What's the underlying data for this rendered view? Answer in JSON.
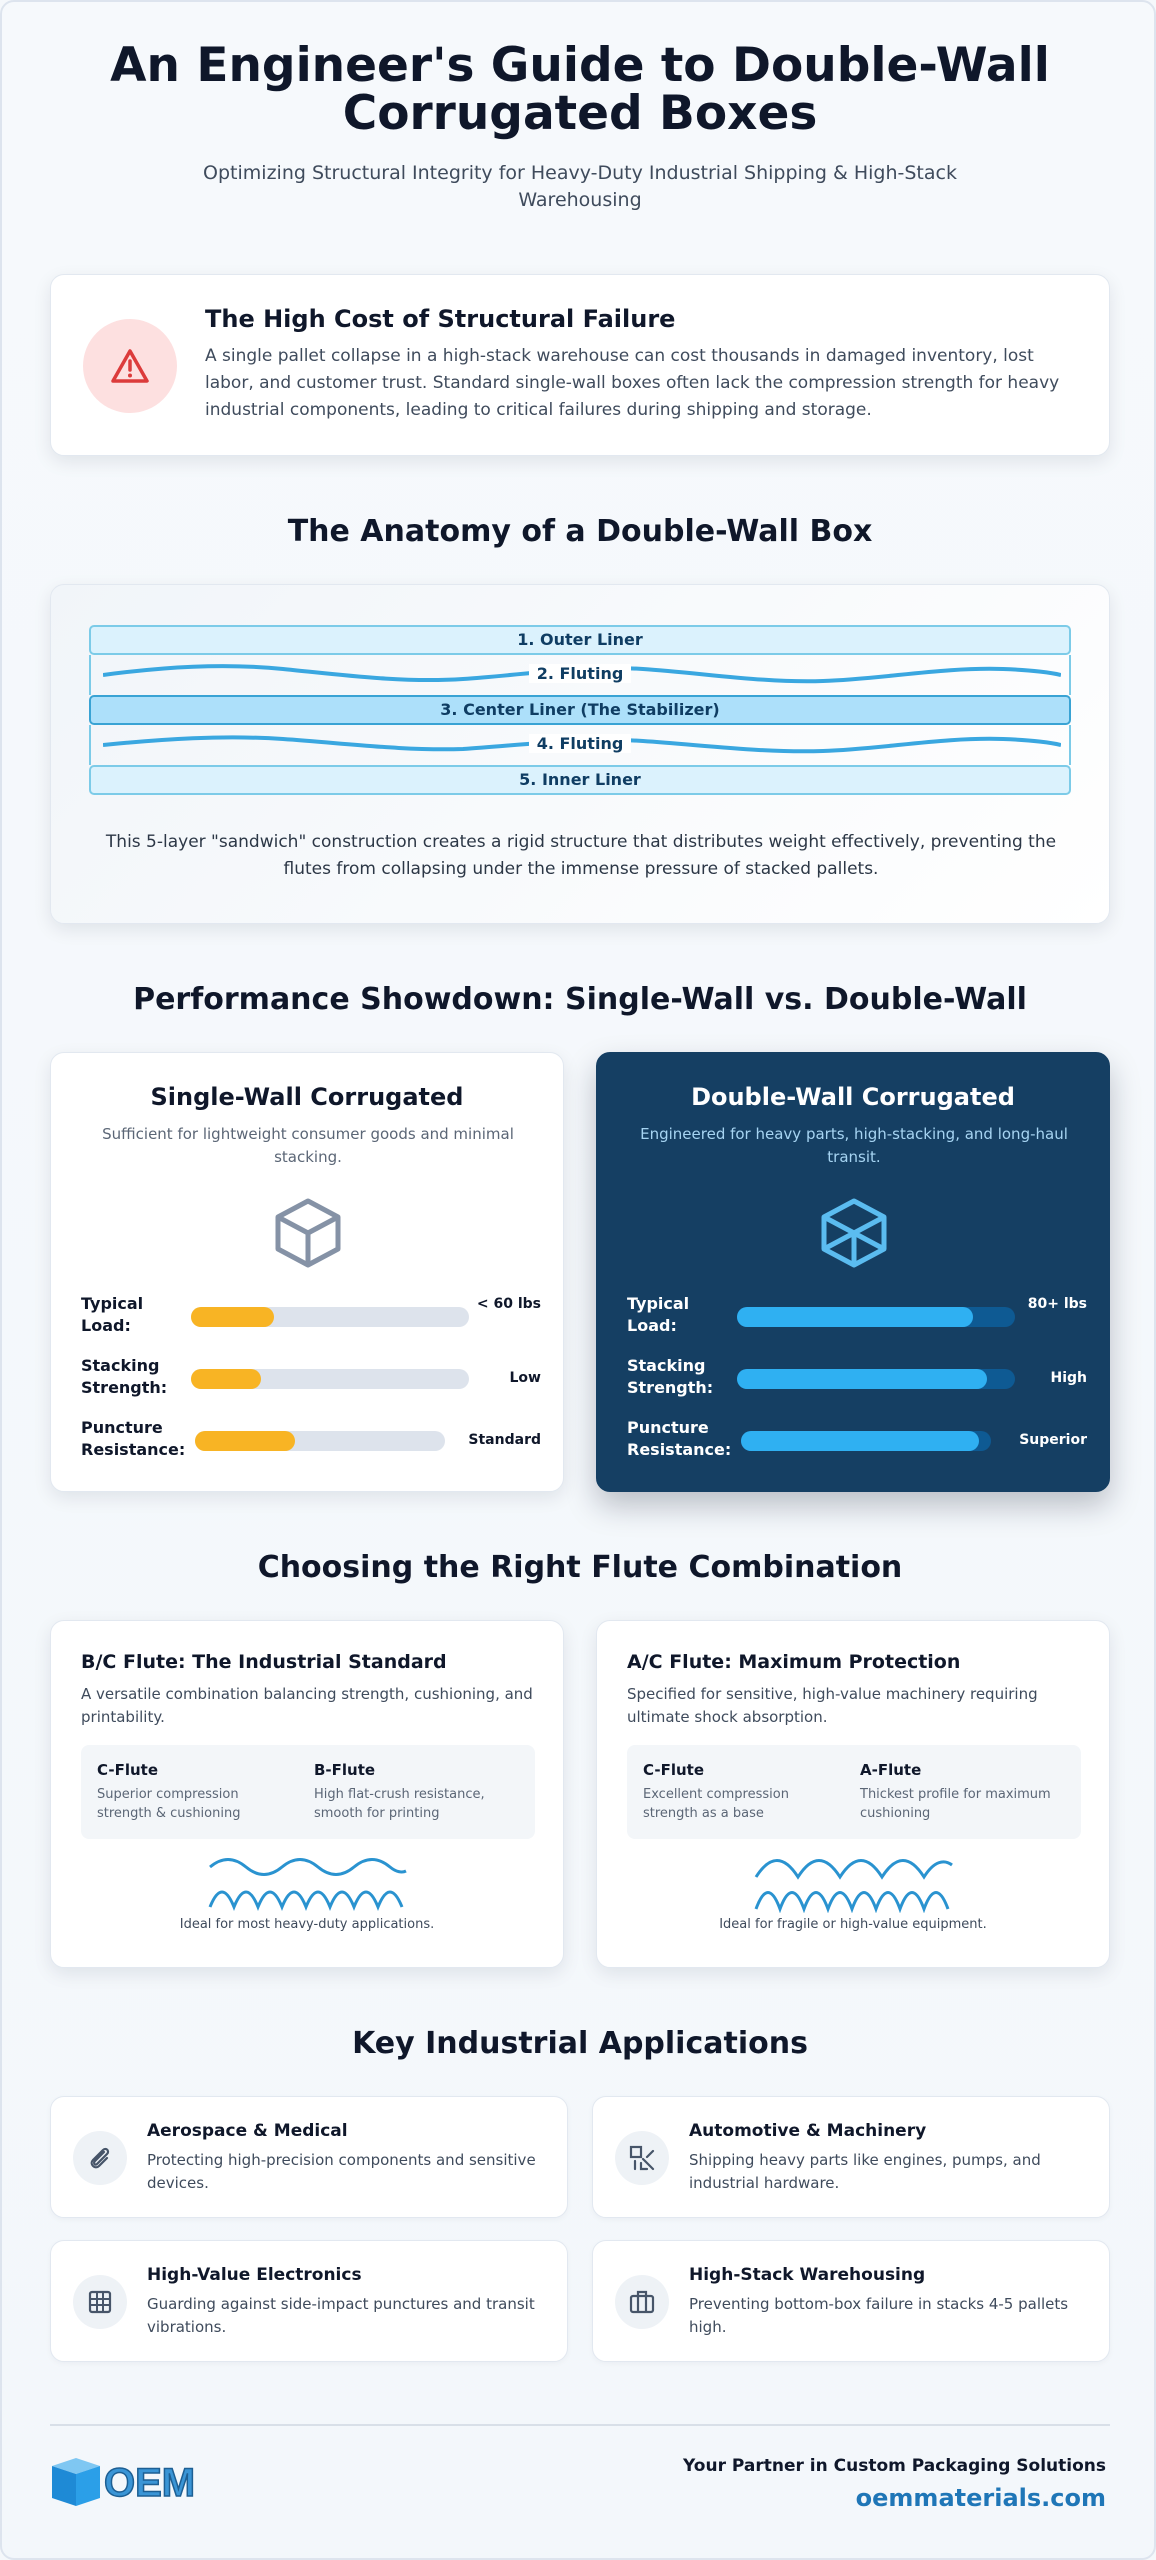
{
  "header": {
    "title": "An Engineer's Guide to Double-Wall Corrugated Boxes",
    "subtitle": "Optimizing Structural Integrity for Heavy-Duty Industrial Shipping & High-Stack Warehousing"
  },
  "problem": {
    "icon": "warning-icon",
    "title": "The High Cost of Structural Failure",
    "text": "A single pallet collapse in a high-stack warehouse can cost thousands in damaged inventory, lost labor, and customer trust. Standard single-wall boxes often lack the compression strength for heavy industrial components, leading to critical failures during shipping and storage."
  },
  "anatomy": {
    "title": "The Anatomy of a Double-Wall Box",
    "layers": [
      "1. Outer Liner",
      "2. Fluting",
      "3. Center Liner (The Stabilizer)",
      "4. Fluting",
      "5. Inner Liner"
    ],
    "caption": "This 5-layer \"sandwich\" construction creates a rigid structure that distributes weight effectively, preventing the flutes from collapsing under the immense pressure of stacked pallets."
  },
  "comparison": {
    "title": "Performance Showdown: Single-Wall vs. Double-Wall",
    "single": {
      "title": "Single-Wall Corrugated",
      "subtitle": "Sufficient for lightweight consumer goods and minimal stacking.",
      "icon": "cube-outline-icon",
      "metrics": [
        {
          "label": "Typical Load:",
          "value": "< 60 lbs",
          "level": 0.3
        },
        {
          "label": "Stacking Strength:",
          "value": "Low",
          "level": 0.25
        },
        {
          "label": "Puncture Resistance:",
          "value": "Standard",
          "level": 0.4
        }
      ]
    },
    "double": {
      "title": "Double-Wall Corrugated",
      "subtitle": "Engineered for heavy parts, high-stacking, and long-haul transit.",
      "icon": "cube-reinforced-icon",
      "metrics": [
        {
          "label": "Typical Load:",
          "value": "80+ lbs",
          "level": 0.85
        },
        {
          "label": "Stacking Strength:",
          "value": "High",
          "level": 0.9
        },
        {
          "label": "Puncture Resistance:",
          "value": "Superior",
          "level": 0.95
        }
      ]
    }
  },
  "flutes": {
    "title": "Choosing the Right Flute Combination",
    "bc": {
      "title": "B/C Flute: The Industrial Standard",
      "desc": "A versatile combination balancing strength, cushioning, and printability.",
      "col1": {
        "name": "C-Flute",
        "desc": "Superior compression strength & cushioning"
      },
      "col2": {
        "name": "B-Flute",
        "desc": "High flat-crush resistance, smooth for printing"
      },
      "ideal": "Ideal for most heavy-duty applications."
    },
    "ac": {
      "title": "A/C Flute: Maximum Protection",
      "desc": "Specified for sensitive, high-value machinery requiring ultimate shock absorption.",
      "col1": {
        "name": "C-Flute",
        "desc": "Excellent compression strength as a base"
      },
      "col2": {
        "name": "A-Flute",
        "desc": "Thickest profile for maximum cushioning"
      },
      "ideal": "Ideal for fragile or high-value equipment."
    }
  },
  "applications": {
    "title": "Key Industrial Applications",
    "items": [
      {
        "icon": "paperclip-icon",
        "title": "Aerospace & Medical",
        "text": "Protecting high-precision components and sensitive devices."
      },
      {
        "icon": "tools-icon",
        "title": "Automotive & Machinery",
        "text": "Shipping heavy parts like engines, pumps, and industrial hardware."
      },
      {
        "icon": "circuit-grid-icon",
        "title": "High-Value Electronics",
        "text": "Guarding against side-impact punctures and transit vibrations."
      },
      {
        "icon": "briefcase-icon",
        "title": "High-Stack Warehousing",
        "text": "Preventing bottom-box failure in stacks 4-5 pallets high."
      }
    ]
  },
  "footer": {
    "logo_text": "OEM",
    "tagline": "Your Partner in Custom Packaging Solutions",
    "website": "oemmaterials.com"
  },
  "colors": {
    "single_bar": "#f8b424",
    "double_bar": "#2fb0f2",
    "double_card": "#153f63",
    "accent_link": "#1f76b7"
  }
}
